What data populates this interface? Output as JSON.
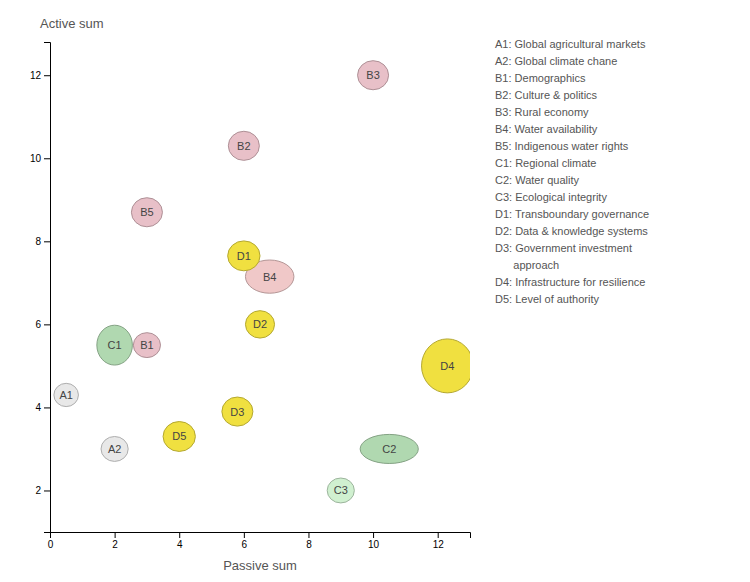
{
  "chart_data": {
    "type": "scatter",
    "xlabel": "Passive sum",
    "ylabel": "Active sum",
    "xlim": [
      0,
      13.0
    ],
    "ylim": [
      1.0,
      12.8
    ],
    "xticks": [
      0,
      2,
      4,
      6,
      8,
      10,
      12
    ],
    "yticks": [
      2,
      4,
      6,
      8,
      10,
      12
    ],
    "grid": false,
    "categories": [
      "A1",
      "A2",
      "B1",
      "B2",
      "B3",
      "B4",
      "B5",
      "C1",
      "C2",
      "C3",
      "D1",
      "D2",
      "D3",
      "D4",
      "D5"
    ],
    "x": [
      0.5,
      2.0,
      3.0,
      6.0,
      10.0,
      6.8,
      3.0,
      2.0,
      10.5,
      9.0,
      6.0,
      6.5,
      5.8,
      12.3,
      4.0
    ],
    "values": [
      4.3,
      3.0,
      5.5,
      10.3,
      12.0,
      7.15,
      8.7,
      5.5,
      3.0,
      2.0,
      7.65,
      6.0,
      3.9,
      5.0,
      3.3
    ],
    "rx": [
      0.38,
      0.42,
      0.42,
      0.48,
      0.48,
      0.75,
      0.48,
      0.55,
      0.9,
      0.42,
      0.5,
      0.45,
      0.48,
      0.8,
      0.5
    ],
    "ry": [
      0.28,
      0.3,
      0.3,
      0.35,
      0.35,
      0.4,
      0.35,
      0.48,
      0.35,
      0.3,
      0.36,
      0.33,
      0.35,
      0.65,
      0.36
    ],
    "colors": [
      "#e8e8e8",
      "#e8e8e8",
      "#e8c0c8",
      "#e8c0c8",
      "#e8c0c8",
      "#f0c8c8",
      "#e8c0c8",
      "#b0d8b0",
      "#b0d8b0",
      "#d0f0d0",
      "#f0e040",
      "#f0e040",
      "#f0e040",
      "#f0e040",
      "#f0e040"
    ],
    "annotations": [
      "A1: Global agricultural markets",
      "A2: Global climate chane",
      "B1: Demographics",
      "B2: Culture & politics",
      "B3: Rural economy",
      "B4: Water availability",
      "B5: Indigenous water rights",
      "C1: Regional climate",
      "C2: Water quality",
      "C3: Ecological integrity",
      "D1: Transboundary governance",
      "D2: Data & knowledge systems",
      "D3: Government investment\n      approach",
      "D4: Infrastructure for resilience",
      "D5: Level of authority"
    ]
  }
}
